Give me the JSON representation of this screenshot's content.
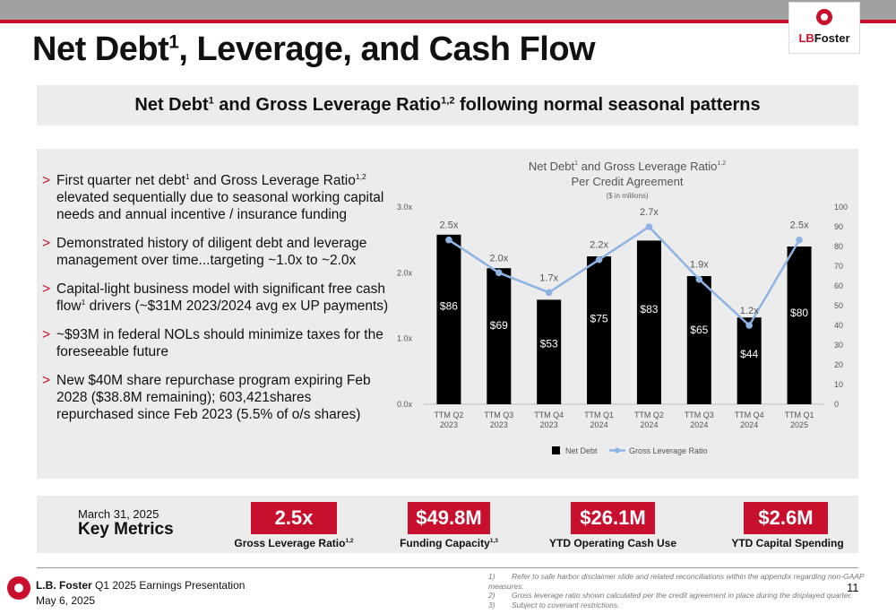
{
  "header": {
    "title_main": "Net Debt",
    "title_sup": "1",
    "title_rest": ", Leverage, and Cash Flow",
    "logo_text_a": "LB",
    "logo_text_b": "Foster"
  },
  "banner": {
    "part1": "Net Debt",
    "sup1": "1",
    "part2": " and Gross Leverage Ratio",
    "sup2": "1,2",
    "part3": " following normal seasonal patterns"
  },
  "bullets": [
    {
      "a": "First quarter net debt",
      "s1": "1",
      "b": " and Gross Leverage Ratio",
      "s2": "1,2",
      "c": " elevated sequentially due to seasonal working capital needs and annual incentive / insurance funding"
    },
    {
      "a": "Demonstrated history of diligent debt and leverage management over time...targeting ~1.0x to ~2.0x",
      "s1": "",
      "b": "",
      "s2": "",
      "c": ""
    },
    {
      "a": "Capital-light business model with significant free cash flow",
      "s1": "1",
      "b": " drivers (~$31M 2023/2024 avg ex UP payments)",
      "s2": "",
      "c": ""
    },
    {
      "a": "~$93M in federal NOLs should minimize taxes for the foreseeable future",
      "s1": "",
      "b": "",
      "s2": "",
      "c": ""
    },
    {
      "a": "New $40M share repurchase program expiring Feb 2028 ($38.8M remaining); 603,421shares repurchased since Feb 2023 (5.5% of o/s shares)",
      "s1": "",
      "b": "",
      "s2": "",
      "c": ""
    }
  ],
  "chart_data": {
    "type": "bar",
    "title_a": "Net Debt",
    "title_sup_a": "1",
    "title_b": " and Gross Leverage Ratio",
    "title_sup_b": "1,2",
    "title_line2": "Per Credit Agreement",
    "subtitle": "($ in millions)",
    "categories": [
      [
        "TTM Q2",
        "2023"
      ],
      [
        "TTM Q3",
        "2023"
      ],
      [
        "TTM Q4",
        "2023"
      ],
      [
        "TTM Q1",
        "2024"
      ],
      [
        "TTM Q2",
        "2024"
      ],
      [
        "TTM Q3",
        "2024"
      ],
      [
        "TTM Q4",
        "2024"
      ],
      [
        "TTM Q1",
        "2025"
      ]
    ],
    "series": [
      {
        "name": "Net Debt",
        "type": "bar",
        "axis": "right",
        "values": [
          86,
          69,
          53,
          75,
          83,
          65,
          44,
          80
        ],
        "labels": [
          "$86",
          "$69",
          "$53",
          "$75",
          "$83",
          "$65",
          "$44",
          "$80"
        ],
        "color": "#000000"
      },
      {
        "name": "Gross Leverage Ratio",
        "type": "line",
        "axis": "left",
        "values": [
          2.5,
          2.0,
          1.7,
          2.2,
          2.7,
          1.9,
          1.2,
          2.5
        ],
        "labels": [
          "2.5x",
          "2.0x",
          "1.7x",
          "2.2x",
          "2.7x",
          "1.9x",
          "1.2x",
          "2.5x"
        ],
        "color": "#8eb4e3"
      }
    ],
    "y_left": {
      "ticks": [
        "0.0x",
        "1.0x",
        "2.0x",
        "3.0x"
      ],
      "ylim": [
        0,
        3
      ]
    },
    "y_right": {
      "ticks": [
        "0",
        "10",
        "20",
        "30",
        "40",
        "50",
        "60",
        "70",
        "80",
        "90",
        "100"
      ],
      "ylim": [
        0,
        100
      ]
    },
    "legend": "bottom",
    "grid": false
  },
  "metrics": {
    "date": "March 31, 2025",
    "label": "Key Metrics",
    "items": [
      {
        "value": "2.5x",
        "caption": "Gross Leverage Ratio",
        "sup": "1,2"
      },
      {
        "value": "$49.8M",
        "caption": "Funding Capacity",
        "sup": "1,3"
      },
      {
        "value": "$26.1M",
        "caption": "YTD Operating Cash Use",
        "sup": ""
      },
      {
        "value": "$2.6M",
        "caption": "YTD Capital Spending",
        "sup": ""
      }
    ]
  },
  "footer": {
    "company": "L.B. Foster",
    "presentation": " Q1 2025 Earnings Presentation",
    "date": "May 6, 2025",
    "page": "11",
    "notes": [
      {
        "n": "1)",
        "t": "Refer to safe harbor disclaimer slide and related reconciliations within the appendix regarding non-GAAP measures."
      },
      {
        "n": "2)",
        "t": "Gross leverage ratio shown calculated per the credit agreement in place during the displayed quarter."
      },
      {
        "n": "3)",
        "t": "Subject to covenant restrictions."
      }
    ]
  },
  "colors": {
    "accent": "#c8102e",
    "panel": "#ececec",
    "line": "#8eb4e3"
  }
}
